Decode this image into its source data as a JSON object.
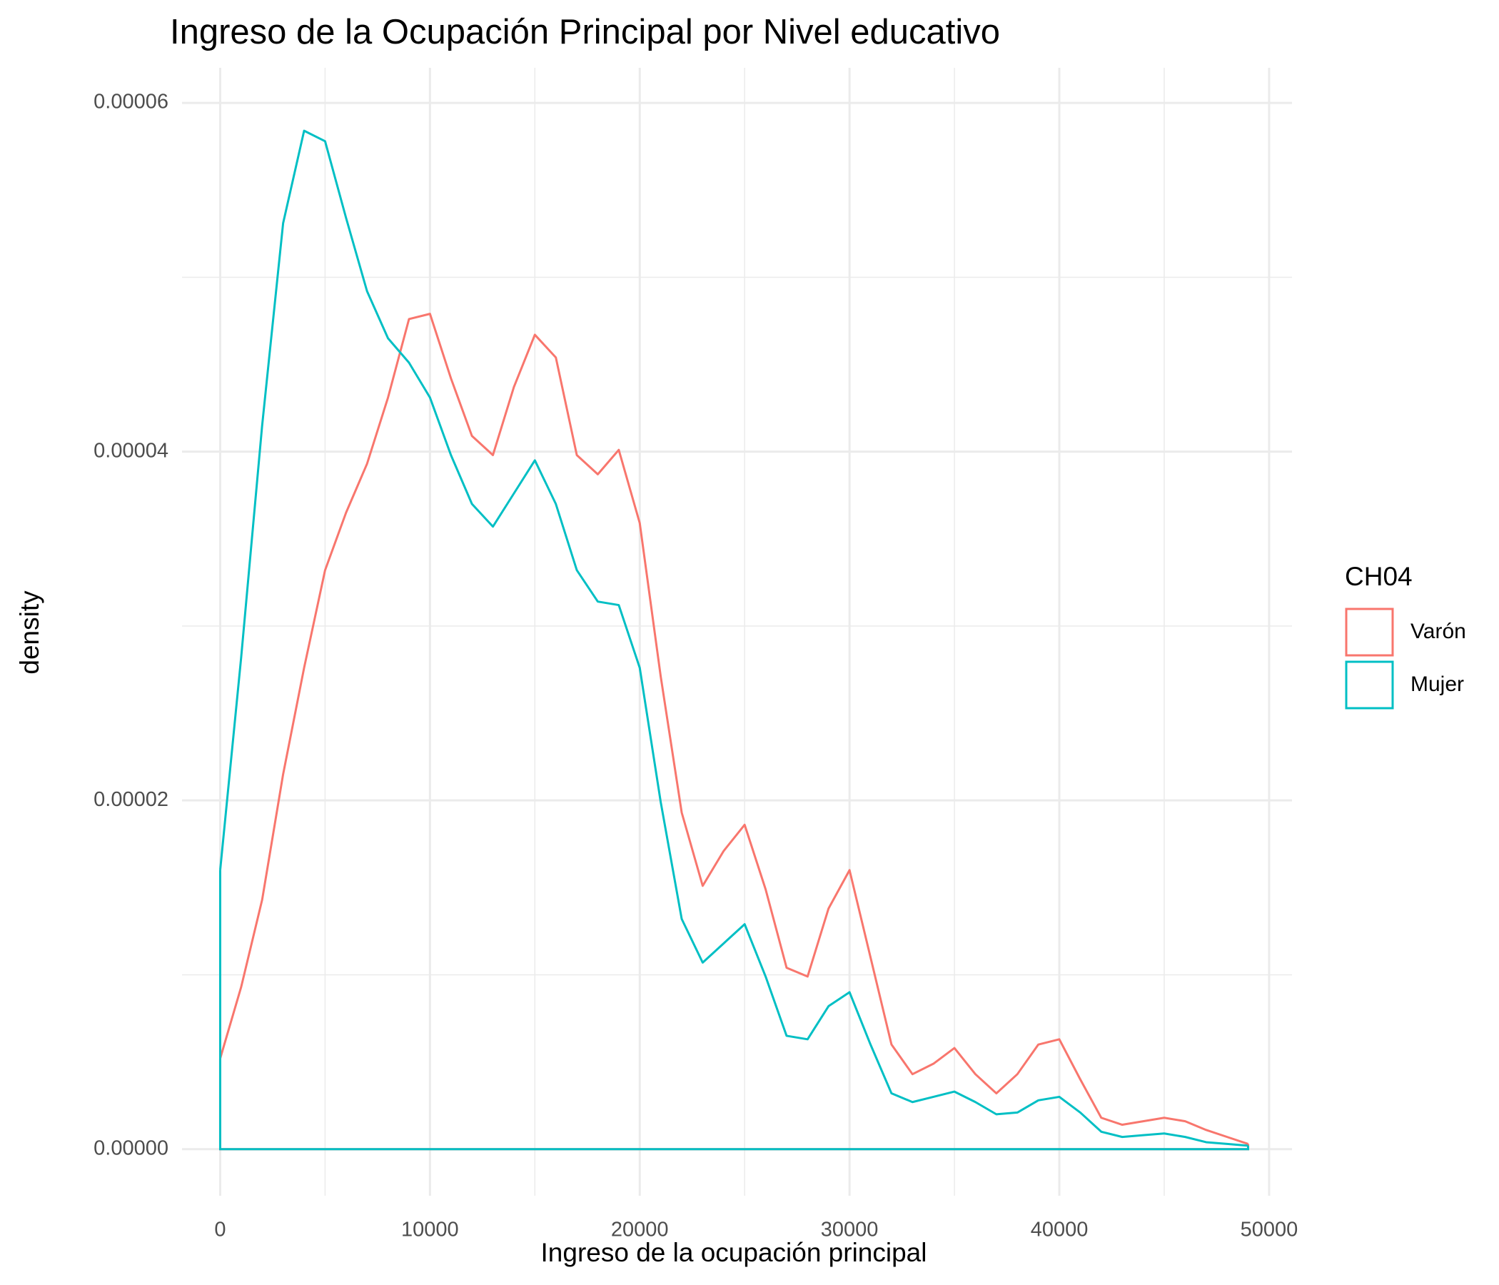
{
  "chart_data": {
    "type": "density",
    "title": "Ingreso de la Ocupación Principal por Nivel educativo",
    "x_label": "Ingreso de la ocupación principal",
    "y_label": "density",
    "legend_title": "CH04",
    "legend_position": "right",
    "grid": true,
    "xlim": [
      -2500,
      51500
    ],
    "ylim": [
      -3e-06,
      6.25e-05
    ],
    "xticks": [
      0,
      10000,
      20000,
      30000,
      40000,
      50000
    ],
    "yticks": [
      {
        "value": 0,
        "label": "0.00000"
      },
      {
        "value": 2e-05,
        "label": "0.00002"
      },
      {
        "value": 4e-05,
        "label": "0.00004"
      },
      {
        "value": 6e-05,
        "label": "0.00006"
      }
    ],
    "x": [
      0,
      1000,
      2000,
      3000,
      4000,
      5000,
      6000,
      7000,
      8000,
      9000,
      10000,
      11000,
      12000,
      13000,
      14000,
      15000,
      16000,
      17000,
      18000,
      19000,
      20000,
      21000,
      22000,
      23000,
      24000,
      25000,
      26000,
      27000,
      28000,
      29000,
      30000,
      31000,
      32000,
      33000,
      34000,
      35000,
      36000,
      37000,
      38000,
      39000,
      40000,
      41000,
      42000,
      43000,
      44000,
      45000,
      46000,
      47000,
      48000,
      49000
    ],
    "series": [
      {
        "name": "Varón",
        "color": "#f8766d",
        "values": [
          5.2e-06,
          9.3e-06,
          1.43e-05,
          2.15e-05,
          2.76e-05,
          3.32e-05,
          3.65e-05,
          3.93e-05,
          4.31e-05,
          4.76e-05,
          4.79e-05,
          4.42e-05,
          4.09e-05,
          3.98e-05,
          4.37e-05,
          4.67e-05,
          4.54e-05,
          3.98e-05,
          3.87e-05,
          4.01e-05,
          3.59e-05,
          2.71e-05,
          1.93e-05,
          1.51e-05,
          1.71e-05,
          1.86e-05,
          1.49e-05,
          1.04e-05,
          9.9e-06,
          1.38e-05,
          1.6e-05,
          1.1e-05,
          6e-06,
          4.3e-06,
          4.9e-06,
          5.8e-06,
          4.3e-06,
          3.2e-06,
          4.3e-06,
          6e-06,
          6.3e-06,
          4e-06,
          1.8e-06,
          1.4e-06,
          1.6e-06,
          1.8e-06,
          1.6e-06,
          1.1e-06,
          7e-07,
          3e-07
        ]
      },
      {
        "name": "Mujer",
        "color": "#00bfc4",
        "values": [
          1.6e-05,
          2.82e-05,
          4.15e-05,
          5.31e-05,
          5.84e-05,
          5.78e-05,
          5.34e-05,
          4.92e-05,
          4.65e-05,
          4.51e-05,
          4.31e-05,
          3.98e-05,
          3.7e-05,
          3.57e-05,
          3.76e-05,
          3.95e-05,
          3.7e-05,
          3.32e-05,
          3.14e-05,
          3.12e-05,
          2.76e-05,
          1.99e-05,
          1.32e-05,
          1.07e-05,
          1.18e-05,
          1.29e-05,
          9.9e-06,
          6.5e-06,
          6.3e-06,
          8.2e-06,
          9e-06,
          6e-06,
          3.2e-06,
          2.7e-06,
          3e-06,
          3.3e-06,
          2.7e-06,
          2e-06,
          2.1e-06,
          2.8e-06,
          3e-06,
          2.1e-06,
          1e-06,
          7e-07,
          8e-07,
          9e-07,
          7e-07,
          4e-07,
          3e-07,
          2e-07
        ]
      }
    ]
  }
}
